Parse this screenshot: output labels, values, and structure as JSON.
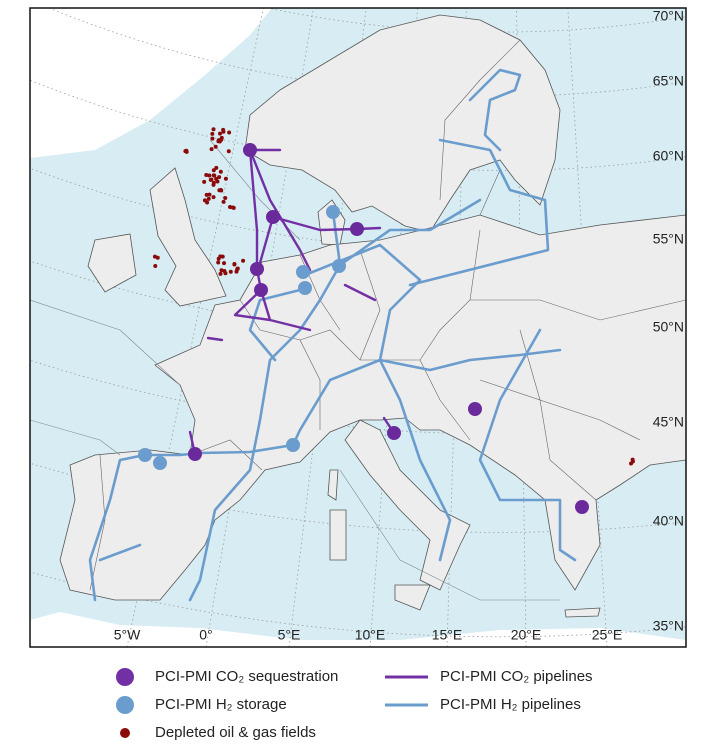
{
  "map": {
    "lat_labels": [
      "70°N",
      "65°N",
      "60°N",
      "55°N",
      "50°N",
      "45°N",
      "40°N",
      "35°N"
    ],
    "lon_labels": [
      "5°W",
      "0°",
      "5°E",
      "10°E",
      "15°E",
      "20°E",
      "25°E"
    ]
  },
  "legend": {
    "items": [
      "PCI-PMI CO₂ sequestration",
      "PCI-PMI H₂ storage",
      "Depleted oil & gas fields",
      "PCI-PMI CO₂ pipelines",
      "PCI-PMI H₂ pipelines"
    ]
  }
}
